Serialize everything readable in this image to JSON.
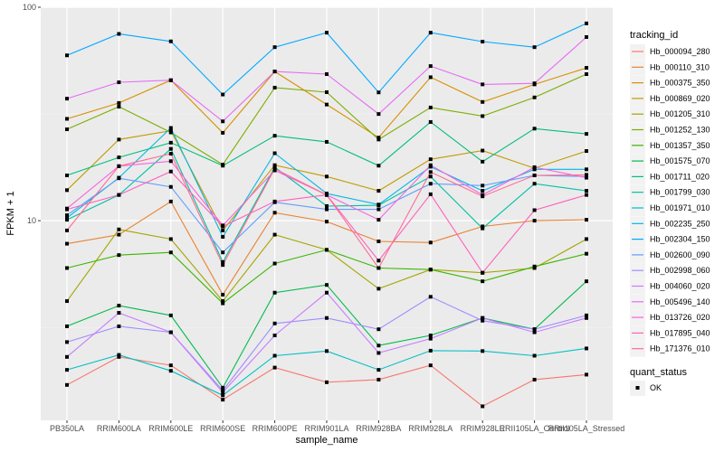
{
  "chart_data": {
    "type": "line",
    "title": "",
    "xlabel": "sample_name",
    "ylabel": "FPKM + 1",
    "yscale": "log10",
    "ylim": [
      1.16,
      100
    ],
    "y_ticks": [
      10,
      100
    ],
    "y_tick_labels": [
      "10",
      "100"
    ],
    "grid": true,
    "legend_position": "right",
    "categories": [
      "PB350LA",
      "RRIM600LA",
      "RRIM600LE",
      "RRIM600SE",
      "RRIM600PE",
      "RRIM901LA",
      "RRIM928BA",
      "RRIM928LA",
      "RRIM928LE",
      "RRII105LA_Control",
      "RRII105LA_Stressed"
    ],
    "legend": {
      "color_title": "tracking_id",
      "shape_title": "quant_status",
      "shape_entries": [
        "OK"
      ]
    },
    "series": [
      {
        "name": "Hb_000094_280",
        "color": "#F8766D",
        "values": [
          1.7,
          2.3,
          2.1,
          1.45,
          2.05,
          1.75,
          1.8,
          2.1,
          1.35,
          1.8,
          1.9
        ]
      },
      {
        "name": "Hb_000110_310",
        "color": "#EA8331",
        "values": [
          7.8,
          8.6,
          12.3,
          4.5,
          10.9,
          9.9,
          8.0,
          7.9,
          9.4,
          10.0,
          10.1
        ]
      },
      {
        "name": "Hb_000375_350",
        "color": "#D89000",
        "values": [
          30.0,
          35.6,
          45.5,
          25.8,
          50.0,
          35.0,
          24.5,
          47.0,
          36.0,
          43.5,
          52.0
        ]
      },
      {
        "name": "Hb_000869_020",
        "color": "#C09B00",
        "values": [
          13.9,
          24.0,
          26.4,
          9.0,
          18.2,
          16.1,
          13.8,
          19.4,
          21.3,
          17.6,
          21.2
        ]
      },
      {
        "name": "Hb_001205_310",
        "color": "#A3A500",
        "values": [
          4.2,
          9.1,
          8.2,
          4.2,
          8.6,
          7.3,
          4.8,
          5.9,
          5.7,
          6.0,
          8.2
        ]
      },
      {
        "name": "Hb_001252_130",
        "color": "#7CAE00",
        "values": [
          26.8,
          34.2,
          25.9,
          18.3,
          42.0,
          40.0,
          24.0,
          33.9,
          30.9,
          37.8,
          48.6
        ]
      },
      {
        "name": "Hb_001357_350",
        "color": "#39B600",
        "values": [
          6.0,
          6.9,
          7.1,
          4.1,
          6.3,
          7.3,
          6.0,
          5.9,
          5.2,
          6.1,
          7.0
        ]
      },
      {
        "name": "Hb_001575_070",
        "color": "#00BB4E",
        "values": [
          3.2,
          4.0,
          3.6,
          1.65,
          4.6,
          5.0,
          2.6,
          2.9,
          3.5,
          3.1,
          5.2
        ]
      },
      {
        "name": "Hb_001711_020",
        "color": "#00BF7D",
        "values": [
          16.3,
          19.8,
          23.2,
          18.1,
          25.0,
          23.4,
          18.1,
          29.0,
          18.9,
          27.0,
          25.5
        ]
      },
      {
        "name": "Hb_001799_030",
        "color": "#00C1A3",
        "values": [
          10.1,
          13.2,
          21.7,
          6.4,
          17.8,
          11.7,
          11.8,
          16.1,
          9.2,
          14.9,
          13.8
        ]
      },
      {
        "name": "Hb_001971_010",
        "color": "#00BFC4",
        "values": [
          2.0,
          2.35,
          1.98,
          1.52,
          2.33,
          2.45,
          2.0,
          2.46,
          2.45,
          2.33,
          2.52
        ]
      },
      {
        "name": "Hb_002235_250",
        "color": "#00B8E5",
        "values": [
          10.3,
          15.9,
          27.2,
          8.4,
          20.7,
          13.4,
          11.9,
          17.9,
          13.8,
          17.4,
          17.4
        ]
      },
      {
        "name": "Hb_002304_150",
        "color": "#00A9FF",
        "values": [
          59.5,
          75.0,
          69.2,
          39.0,
          65.0,
          76.0,
          39.9,
          76.0,
          69.0,
          65.0,
          84.0
        ]
      },
      {
        "name": "Hb_002600_090",
        "color": "#619CFF",
        "values": [
          10.6,
          15.8,
          14.4,
          7.1,
          12.2,
          11.3,
          11.3,
          14.9,
          14.6,
          16.3,
          16.1
        ]
      },
      {
        "name": "Hb_002998_060",
        "color": "#9F8CFF",
        "values": [
          2.7,
          3.2,
          3.0,
          1.6,
          3.3,
          3.5,
          3.1,
          4.4,
          3.4,
          3.1,
          3.6
        ]
      },
      {
        "name": "Hb_004060_020",
        "color": "#C77CFF",
        "values": [
          2.3,
          3.7,
          3.0,
          1.57,
          2.9,
          4.6,
          2.4,
          2.8,
          3.5,
          3.0,
          3.5
        ]
      },
      {
        "name": "Hb_005496_140",
        "color": "#E76BF3",
        "values": [
          37.3,
          44.5,
          45.5,
          29.2,
          50.0,
          48.6,
          31.6,
          53.0,
          43.5,
          44.0,
          72.5
        ]
      },
      {
        "name": "Hb_013726_020",
        "color": "#F763E0",
        "values": [
          11.4,
          18.0,
          19.0,
          9.5,
          17.2,
          13.2,
          10.1,
          18.2,
          13.2,
          17.8,
          15.9
        ]
      },
      {
        "name": "Hb_017895_040",
        "color": "#FF62BC",
        "values": [
          11.3,
          13.2,
          17.0,
          9.4,
          12.3,
          13.2,
          6.5,
          13.3,
          5.7,
          11.2,
          13.2
        ]
      },
      {
        "name": "Hb_171376_010",
        "color": "#FF6C91",
        "values": [
          9.0,
          18.0,
          20.6,
          6.2,
          17.5,
          13.2,
          6.0,
          16.9,
          13.0,
          16.3,
          16.4
        ]
      }
    ]
  }
}
